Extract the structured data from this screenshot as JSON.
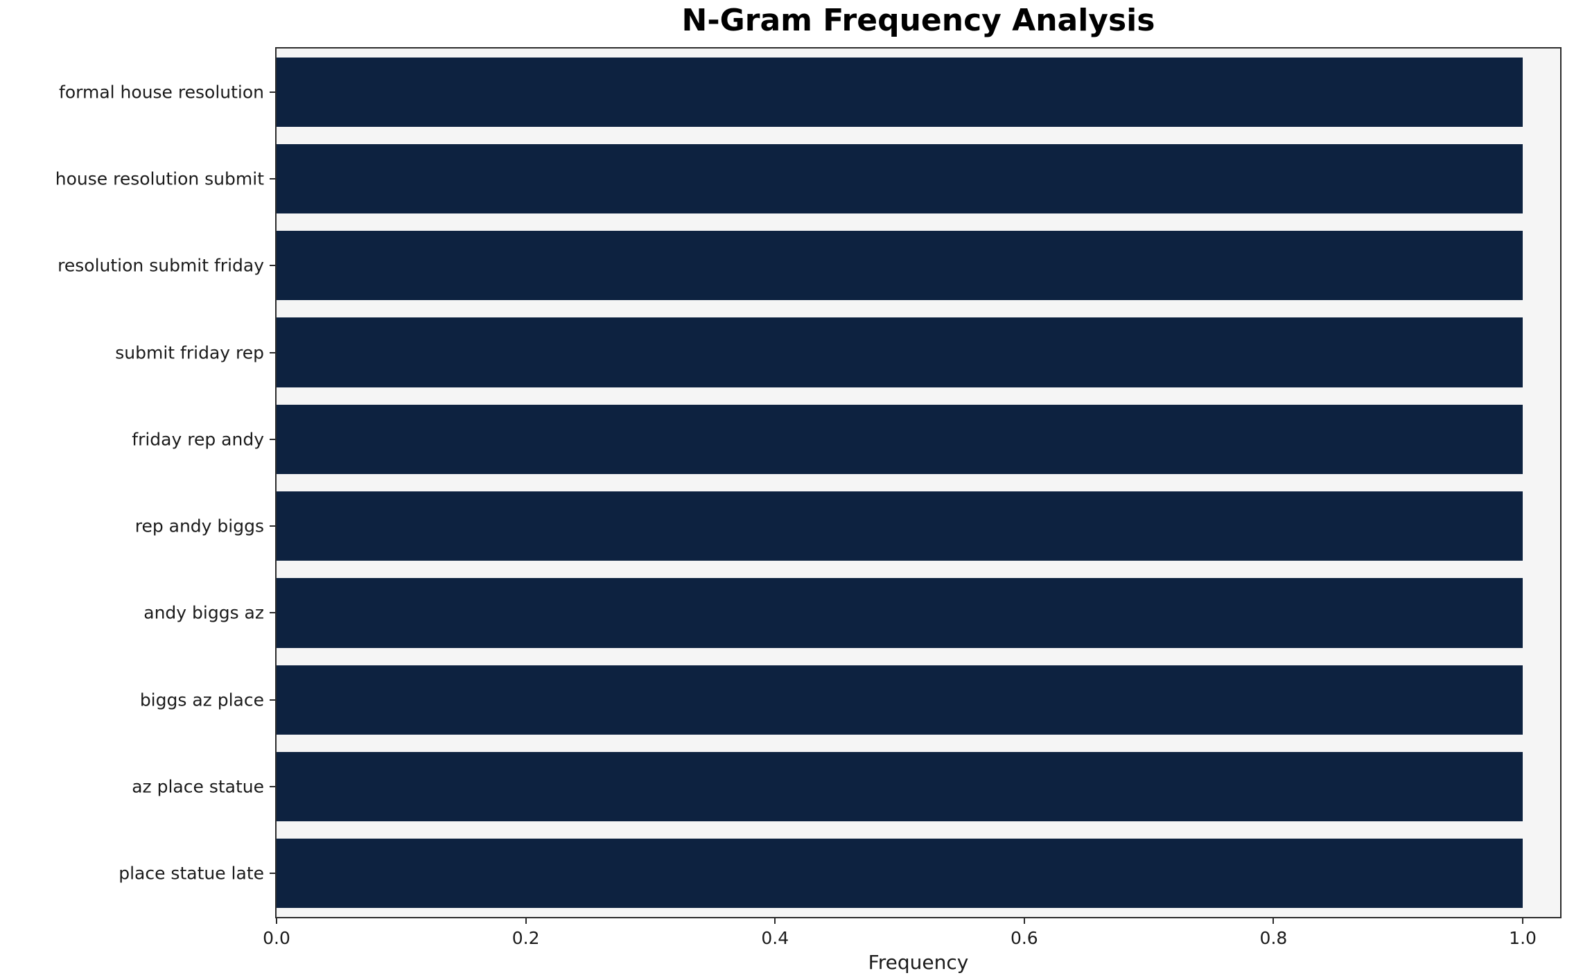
{
  "chart_data": {
    "type": "bar",
    "orientation": "horizontal",
    "title": "N-Gram Frequency Analysis",
    "xlabel": "Frequency",
    "ylabel": "",
    "categories": [
      "formal house resolution",
      "house resolution submit",
      "resolution submit friday",
      "submit friday rep",
      "friday rep andy",
      "rep andy biggs",
      "andy biggs az",
      "biggs az place",
      "az place statue",
      "place statue late"
    ],
    "values": [
      1.0,
      1.0,
      1.0,
      1.0,
      1.0,
      1.0,
      1.0,
      1.0,
      1.0,
      1.0
    ],
    "xlim": [
      0,
      1.03
    ],
    "x_ticks": [
      "0.0",
      "0.2",
      "0.4",
      "0.6",
      "0.8",
      "1.0"
    ],
    "x_tick_values": [
      0.0,
      0.2,
      0.4,
      0.6,
      0.8,
      1.0
    ],
    "bar_color": "#0d2240",
    "plot_bg": "#f5f5f5",
    "grid": false,
    "legend": null
  }
}
